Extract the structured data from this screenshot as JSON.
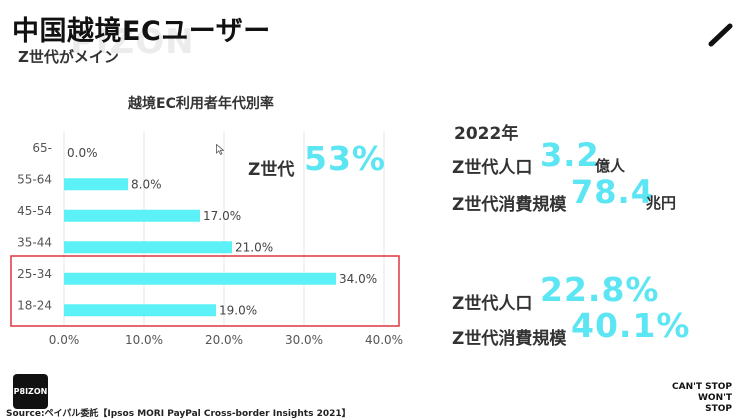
{
  "header": {
    "title": "中国越境ECユーザー",
    "subtitle": "Z世代がメイン",
    "watermark": "PIZON"
  },
  "chart_data": {
    "type": "bar",
    "orientation": "horizontal",
    "title": "越境EC利用者年代別率",
    "categories": [
      "65-",
      "55-64",
      "45-54",
      "35-44",
      "25-34",
      "18-24"
    ],
    "values": [
      0.0,
      8.0,
      17.0,
      21.0,
      34.0,
      19.0
    ],
    "value_labels": [
      "0.0%",
      "8.0%",
      "17.0%",
      "21.0%",
      "34.0%",
      "19.0%"
    ],
    "xlim": [
      0,
      40
    ],
    "xticks": [
      "0.0%",
      "10.0%",
      "20.0%",
      "30.0%",
      "40.0%"
    ],
    "grid": true,
    "highlight": [
      "25-34",
      "18-24"
    ],
    "bar_color": "#5cf0f7",
    "highlight_color": "#e0424c"
  },
  "stats": {
    "z_share_label": "Z世代",
    "z_share_value": "53%",
    "year": "2022年",
    "population_label": "Z世代人口",
    "population_value": "3.2",
    "population_unit": "億人",
    "spending_label": "Z世代消費規模",
    "spending_value": "78.4",
    "spending_unit": "兆円",
    "population_pct_label": "Z世代人口",
    "population_pct_value": "22.8%",
    "spending_pct_label": "Z世代消費規模",
    "spending_pct_value": "40.1%"
  },
  "footer": {
    "logo": "P8IZON",
    "slogan_line1": "CAN'T STOP",
    "slogan_line2": "WON'T STOP",
    "source": "Source:ペイパル委託【Ipsos MORI PayPal Cross-border Insights 2021】"
  },
  "colors": {
    "accent": "#5ce5f2"
  },
  "icons": [
    "pen-icon",
    "cursor-icon"
  ]
}
